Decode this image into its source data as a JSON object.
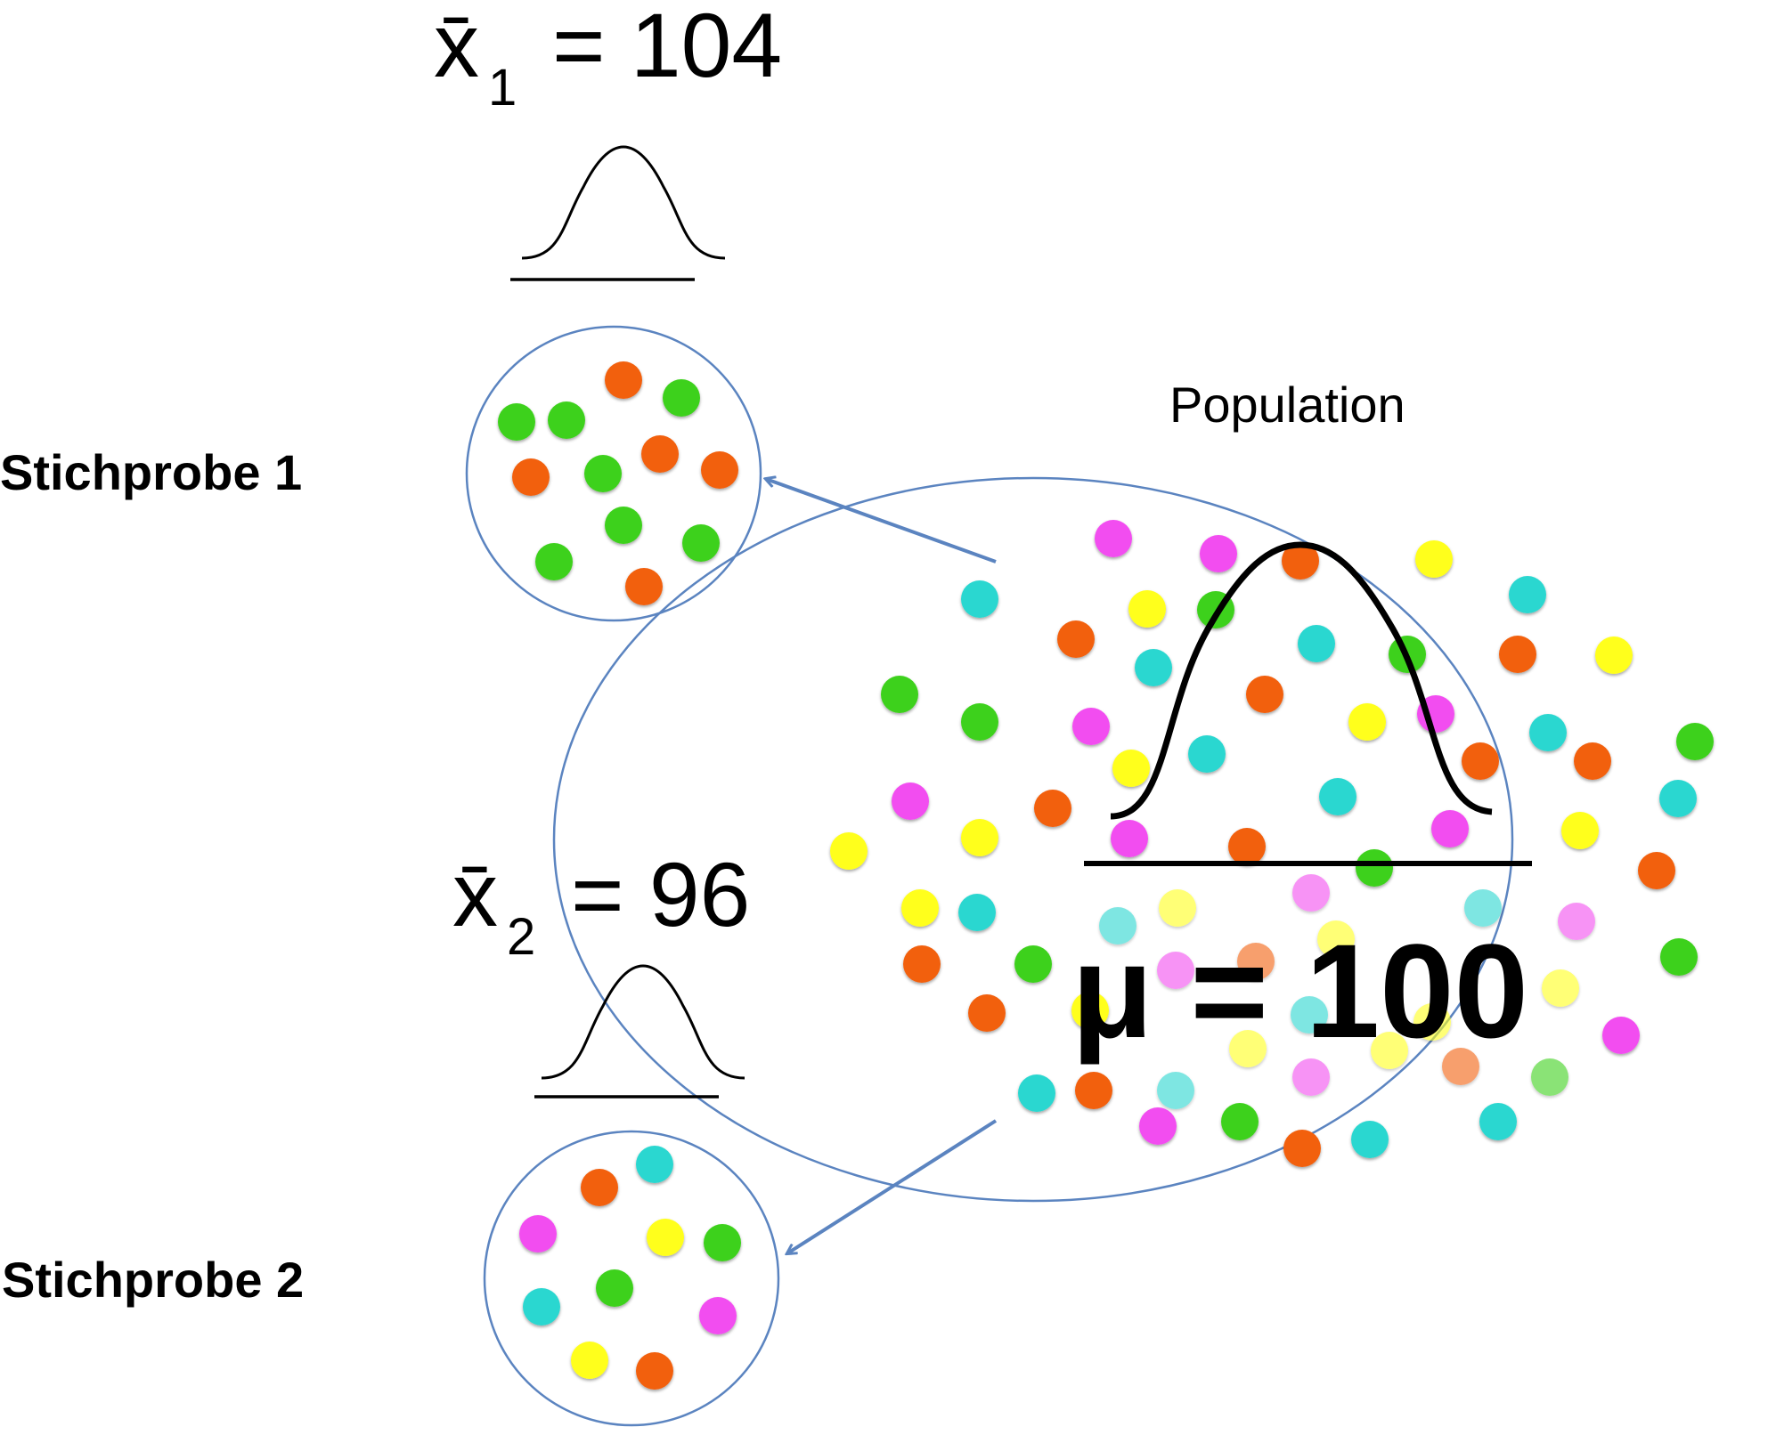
{
  "sample1": {
    "label": "Stichprobe 1",
    "mean_symbol": "x̄",
    "mean_subscript": "1",
    "mean_equals": "= 104"
  },
  "sample2": {
    "label": "Stichprobe 2",
    "mean_symbol": "x̄",
    "mean_subscript": "2",
    "mean_equals": "= 96"
  },
  "population": {
    "label": "Population",
    "mean_text": "μ = 100"
  },
  "colors": {
    "outline": "#5b84c0",
    "arrow": "#5b84c0",
    "green": "#3ed11c",
    "orange": "#f2600f",
    "cyan": "#2cd7d0",
    "magenta": "#f24ef0",
    "yellow": "#ffff1a",
    "curve": "#000000"
  }
}
